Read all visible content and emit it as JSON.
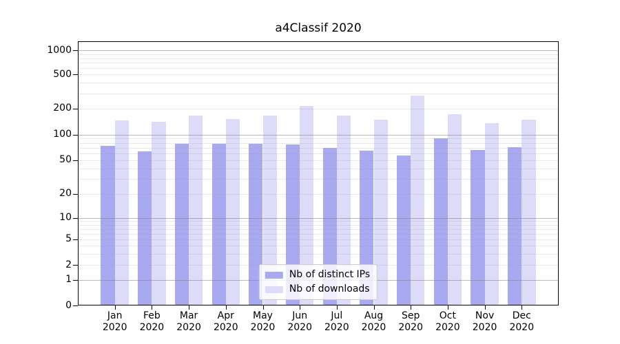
{
  "title": "a4Classif 2020",
  "chart_data": {
    "type": "bar",
    "title": "a4Classif 2020",
    "categories": [
      "Jan 2020",
      "Feb 2020",
      "Mar 2020",
      "Apr 2020",
      "May 2020",
      "Jun 2020",
      "Jul 2020",
      "Aug 2020",
      "Sep 2020",
      "Oct 2020",
      "Nov 2020",
      "Dec 2020"
    ],
    "series": [
      {
        "name": "Nb of distinct IPs",
        "color": "#a9a9f1",
        "values": [
          74,
          64,
          78,
          78,
          78,
          76,
          70,
          65,
          57,
          90,
          66,
          71
        ]
      },
      {
        "name": "Nb of downloads",
        "color": "#dcdcf9",
        "values": [
          146,
          140,
          165,
          152,
          165,
          213,
          165,
          150,
          281,
          172,
          135,
          148
        ]
      }
    ],
    "xlabel": "",
    "ylabel": "",
    "yscale": "symlog",
    "ylim": [
      0,
      1300
    ],
    "yticks": [
      0,
      1,
      2,
      5,
      10,
      20,
      50,
      100,
      200,
      500,
      1000
    ],
    "grid": true,
    "grid_major_color": "#b0b0b0",
    "legend_position": "lower center",
    "legend_entries": [
      "Nb of distinct IPs",
      "Nb of downloads"
    ]
  }
}
